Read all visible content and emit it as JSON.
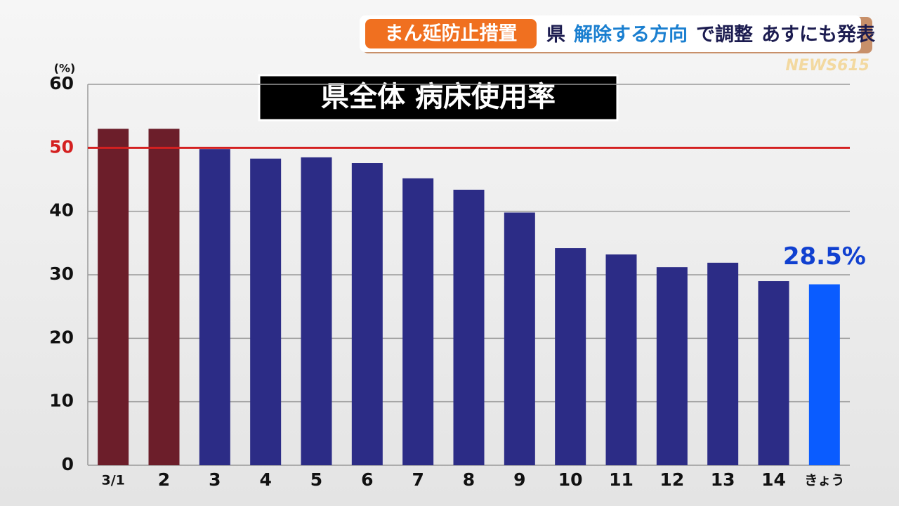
{
  "banner": {
    "tag": "まん延防止措置",
    "headline": [
      {
        "text": "県",
        "color": "#1c1c50"
      },
      {
        "text": "解除する方向",
        "color": "#1a7fd0"
      },
      {
        "text": "で調整",
        "color": "#1c1c50"
      },
      {
        "text": "あすにも発表",
        "color": "#1c1c50"
      }
    ]
  },
  "logo": "NEWS615",
  "chart_data": {
    "type": "bar",
    "title": "県全体 病床使用率",
    "y_unit": "(%)",
    "categories": [
      "3/1",
      "2",
      "3",
      "4",
      "5",
      "6",
      "7",
      "8",
      "9",
      "10",
      "11",
      "12",
      "13",
      "14",
      "きょう"
    ],
    "values": [
      53.0,
      53.0,
      49.8,
      48.3,
      48.5,
      47.6,
      45.2,
      43.4,
      39.8,
      34.2,
      33.2,
      31.2,
      31.9,
      29.0,
      28.5
    ],
    "value_labels": [
      null,
      null,
      null,
      null,
      null,
      null,
      null,
      null,
      null,
      null,
      null,
      null,
      null,
      null,
      "28.5%"
    ],
    "colors": [
      "#6c1e2a",
      "#6c1e2a",
      "#2c2c86",
      "#2c2c86",
      "#2c2c86",
      "#2c2c86",
      "#2c2c86",
      "#2c2c86",
      "#2c2c86",
      "#2c2c86",
      "#2c2c86",
      "#2c2c86",
      "#2c2c86",
      "#2c2c86",
      "#0a5cff"
    ],
    "ylim": [
      0,
      60
    ],
    "yticks": [
      0,
      10,
      20,
      30,
      40,
      50,
      60
    ],
    "grid": true,
    "reference_line": {
      "value": 50,
      "color": "#d42020"
    }
  }
}
